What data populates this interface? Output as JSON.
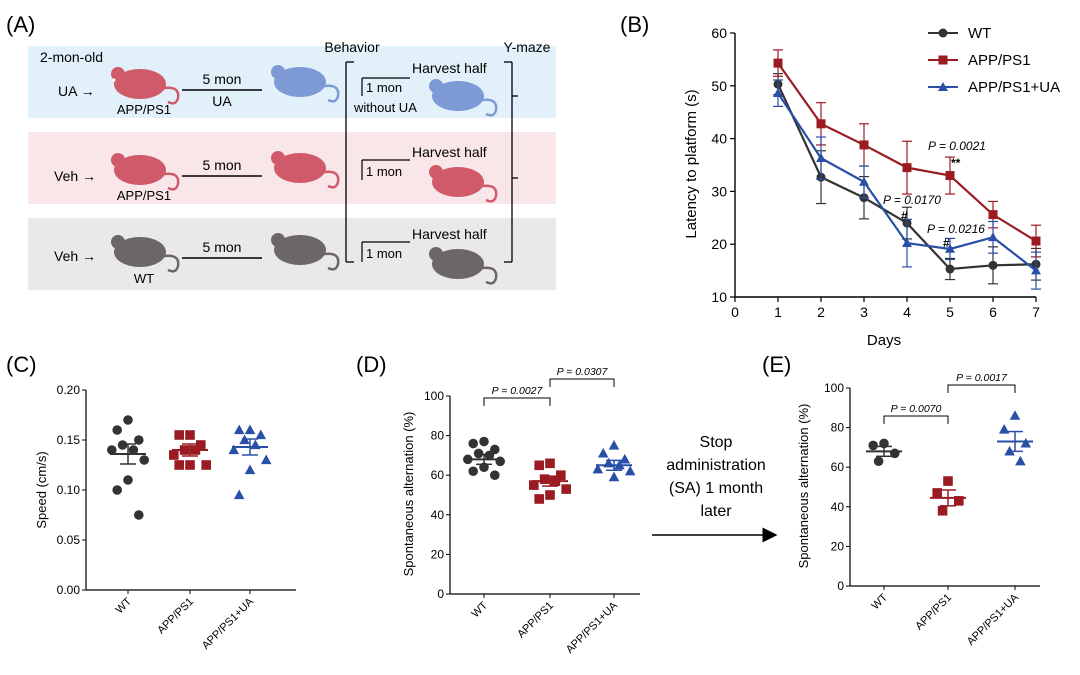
{
  "colors": {
    "wt": "#333333",
    "app": "#9b1b22",
    "ua": "#2a4fa6",
    "band_a": "#e1f0f9",
    "band_b": "#f8e6e8",
    "band_c": "#e9e9e9",
    "mouse_red": "#d05a6a",
    "mouse_blue": "#7d9ad6",
    "mouse_gray": "#6d6669"
  },
  "panel_a": {
    "label": "(A)",
    "age": "2-mon-old",
    "behavior": "Behavior",
    "ymaze": "Y-maze",
    "rows": [
      {
        "start": "UA →",
        "mouse_label": "APP/PS1",
        "duration": "5 mon",
        "treat": "UA",
        "post": "1 mon",
        "post_note": "without UA",
        "harvest": "Harvest half"
      },
      {
        "start": "Veh →",
        "mouse_label": "APP/PS1",
        "duration": "5 mon",
        "treat": "",
        "post": "1 mon",
        "post_note": "",
        "harvest": "Harvest half"
      },
      {
        "start": "Veh →",
        "mouse_label": "WT",
        "duration": "5 mon",
        "treat": "",
        "post": "1 mon",
        "post_note": "",
        "harvest": "Harvest half"
      }
    ]
  },
  "panel_b": {
    "label": "(B)",
    "chart_data": {
      "type": "line",
      "title": "",
      "xlabel": "Days",
      "ylabel": "Latency to platform (s)",
      "xlim": [
        0,
        7
      ],
      "ylim": [
        10,
        60
      ],
      "xticks": [
        "0",
        "1",
        "2",
        "3",
        "4",
        "5",
        "6",
        "7"
      ],
      "yticks": [
        "10",
        "20",
        "30",
        "40",
        "50",
        "60"
      ],
      "x": [
        1,
        2,
        3,
        4,
        5,
        6,
        7
      ],
      "series": [
        {
          "name": "WT",
          "marker": "circle",
          "values": [
            50.3,
            32.7,
            28.8,
            24.0,
            15.3,
            16.0,
            16.2
          ],
          "err": [
            2.0,
            5.0,
            4.0,
            3.0,
            2.0,
            3.5,
            3.0
          ]
        },
        {
          "name": "APP/PS1",
          "marker": "square",
          "values": [
            54.3,
            42.8,
            38.8,
            34.5,
            33.0,
            25.6,
            20.6
          ],
          "err": [
            2.5,
            4.0,
            4.0,
            5.0,
            3.5,
            2.5,
            3.0
          ]
        },
        {
          "name": "APP/PS1+UA",
          "marker": "triangle",
          "values": [
            48.6,
            36.3,
            31.8,
            20.2,
            19.1,
            21.3,
            15.0
          ],
          "err": [
            2.5,
            4.0,
            3.0,
            4.5,
            2.0,
            3.0,
            3.5
          ]
        }
      ],
      "annotations": [
        {
          "text": "P = 0.0021",
          "sub": "**",
          "day": 5
        },
        {
          "text": "P = 0.0170",
          "sub": "#",
          "day": 4
        },
        {
          "text": "P = 0.0216",
          "sub": "#",
          "day": 5
        }
      ]
    }
  },
  "panel_c": {
    "label": "(C)",
    "chart_data": {
      "type": "scatter",
      "ylabel": "Speed (cm/s)",
      "ylim": [
        0,
        0.2
      ],
      "yticks": [
        "0.00",
        "0.05",
        "0.10",
        "0.15",
        "0.20"
      ],
      "categories": [
        "WT",
        "APP/PS1",
        "APP/PS1+UA"
      ],
      "series": [
        {
          "name": "WT",
          "marker": "circle",
          "mean": 0.136,
          "sem": 0.01,
          "points": [
            0.17,
            0.16,
            0.15,
            0.145,
            0.14,
            0.14,
            0.13,
            0.11,
            0.1,
            0.075
          ]
        },
        {
          "name": "APP/PS1",
          "marker": "square",
          "mean": 0.14,
          "sem": 0.006,
          "points": [
            0.155,
            0.155,
            0.145,
            0.14,
            0.14,
            0.135,
            0.125,
            0.125,
            0.125
          ]
        },
        {
          "name": "APP/PS1+UA",
          "marker": "triangle",
          "mean": 0.143,
          "sem": 0.008,
          "points": [
            0.16,
            0.16,
            0.155,
            0.15,
            0.145,
            0.14,
            0.13,
            0.12,
            0.095
          ]
        }
      ]
    }
  },
  "panel_d": {
    "label": "(D)",
    "chart_data": {
      "type": "scatter",
      "ylabel": "Spontaneous alternation (%)",
      "ylim": [
        0,
        100
      ],
      "yticks": [
        "0",
        "20",
        "40",
        "60",
        "80",
        "100"
      ],
      "categories": [
        "WT",
        "APP/PS1",
        "APP/PS1+UA"
      ],
      "series": [
        {
          "name": "WT",
          "marker": "circle",
          "mean": 68,
          "sem": 2.5,
          "points": [
            77,
            76,
            73,
            71,
            70,
            68,
            67,
            64,
            62,
            60
          ]
        },
        {
          "name": "APP/PS1",
          "marker": "square",
          "mean": 57,
          "sem": 2.5,
          "points": [
            66,
            65,
            60,
            58,
            57,
            55,
            53,
            50,
            48
          ]
        },
        {
          "name": "APP/PS1+UA",
          "marker": "triangle",
          "mean": 65,
          "sem": 2.5,
          "points": [
            75,
            71,
            68,
            66,
            65,
            63,
            62,
            59
          ]
        }
      ],
      "comparisons": [
        {
          "text": "P = 0.0027",
          "from": 0,
          "to": 1
        },
        {
          "text": "P = 0.0307",
          "from": 1,
          "to": 2
        }
      ]
    }
  },
  "arrow_note": [
    "Stop",
    "administration",
    "(SA) 1 month",
    "later"
  ],
  "panel_e": {
    "label": "(E)",
    "chart_data": {
      "type": "scatter",
      "ylabel": "Spontaneous alternation (%)",
      "ylim": [
        0,
        100
      ],
      "yticks": [
        "0",
        "20",
        "40",
        "60",
        "80",
        "100"
      ],
      "categories": [
        "WT",
        "APP/PS1",
        "APP/PS1+UA"
      ],
      "series": [
        {
          "name": "WT",
          "marker": "circle",
          "mean": 68,
          "sem": 2.5,
          "points": [
            72,
            71,
            67,
            63
          ]
        },
        {
          "name": "APP/PS1",
          "marker": "square",
          "mean": 44.5,
          "sem": 4,
          "points": [
            53,
            47,
            43,
            38
          ]
        },
        {
          "name": "APP/PS1+UA",
          "marker": "triangle",
          "mean": 73,
          "sem": 5,
          "points": [
            86,
            79,
            72,
            68,
            63
          ]
        }
      ],
      "comparisons": [
        {
          "text": "P = 0.0070",
          "from": 0,
          "to": 1
        },
        {
          "text": "P = 0.0017",
          "from": 1,
          "to": 2
        }
      ]
    }
  }
}
